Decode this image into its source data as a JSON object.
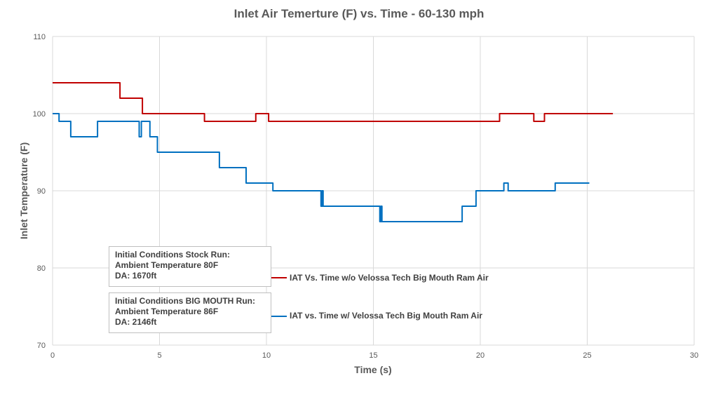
{
  "chart_data": {
    "type": "line",
    "title": "Inlet Air Temerture (F) vs. Time  - 60-130 mph",
    "xlabel": "Time (s)",
    "ylabel": "Inlet Temperature (F)",
    "xlim": [
      0,
      30
    ],
    "ylim": [
      70,
      110
    ],
    "xticks": [
      0,
      5,
      10,
      15,
      20,
      25,
      30
    ],
    "yticks": [
      70,
      80,
      90,
      100,
      110
    ],
    "grid": true,
    "legend_position": "left-bottom, beside annotation boxes",
    "series": [
      {
        "name": "IAT Vs. Time w/o Velossa Tech Big Mouth Ram Air",
        "color": "#c00000",
        "steps": [
          [
            0,
            104
          ],
          [
            3.15,
            102
          ],
          [
            4.2,
            100
          ],
          [
            7.1,
            99
          ],
          [
            9.5,
            100
          ],
          [
            10.1,
            99
          ],
          [
            20.9,
            100
          ],
          [
            22.5,
            99
          ],
          [
            23.0,
            100
          ]
        ],
        "x_end": 26.2
      },
      {
        "name": "IAT vs. Time w/ Velossa Tech Big Mouth Ram Air",
        "color": "#0070c0",
        "steps": [
          [
            0,
            100
          ],
          [
            0.3,
            99
          ],
          [
            0.85,
            97
          ],
          [
            2.1,
            99
          ],
          [
            4.05,
            97
          ],
          [
            4.15,
            99
          ],
          [
            4.55,
            97
          ],
          [
            4.9,
            95
          ],
          [
            7.8,
            93
          ],
          [
            9.05,
            91
          ],
          [
            10.3,
            90
          ],
          [
            12.55,
            88
          ],
          [
            12.6,
            90
          ],
          [
            12.65,
            88
          ],
          [
            15.3,
            86
          ],
          [
            15.35,
            88
          ],
          [
            15.4,
            86
          ],
          [
            19.15,
            88
          ],
          [
            19.8,
            90
          ],
          [
            21.1,
            91
          ],
          [
            21.3,
            90
          ],
          [
            23.5,
            91
          ]
        ],
        "x_end": 25.1
      }
    ]
  },
  "annotations": [
    {
      "lines": [
        "Initial Conditions Stock Run:",
        "Ambient Temperature 80F",
        "DA: 1670ft"
      ]
    },
    {
      "lines": [
        "Initial Conditions BIG MOUTH Run:",
        "Ambient Temperature 86F",
        "DA: 2146ft"
      ]
    }
  ],
  "colors": {
    "grid": "#d9d9d9",
    "text": "#595959"
  }
}
